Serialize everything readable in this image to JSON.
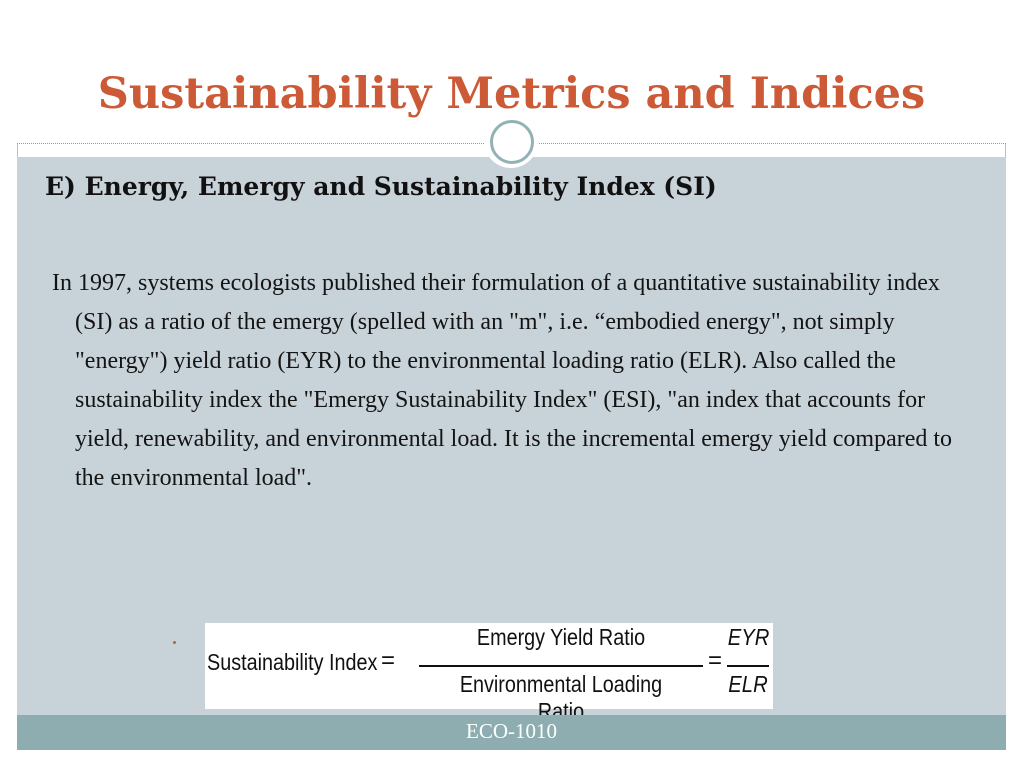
{
  "slide": {
    "title": "Sustainability Metrics and Indices",
    "subtitle": "E) Energy, Emergy and Sustainability Index (SI)",
    "paragraph": "In 1997, systems ecologists published their formulation of a quantitative sustainability index (SI) as a ratio of the emergy  (spelled with an \"m\", i.e. “embodied energy\", not simply \"energy\") yield ratio (EYR) to the environmental loading ratio (ELR). Also called the sustainability index the \"Emergy Sustainability Index\" (ESI), \"an index that accounts for yield, renewability, and environmental load. It is the incremental emergy yield compared to the environmental load\"."
  },
  "formula": {
    "lhs": "Sustainability Index",
    "equals": "=",
    "numerator": "Emergy Yield Ratio",
    "denominator": "Environmental Loading Ratio",
    "short_numerator": "EYR",
    "short_denominator": "ELR"
  },
  "footer": {
    "label": "ECO-1010"
  },
  "colors": {
    "title": "#cc5a37",
    "body_background": "#c8d2d9",
    "footer_background": "#8eadb0",
    "ornament_ring": "#93b2b6"
  }
}
